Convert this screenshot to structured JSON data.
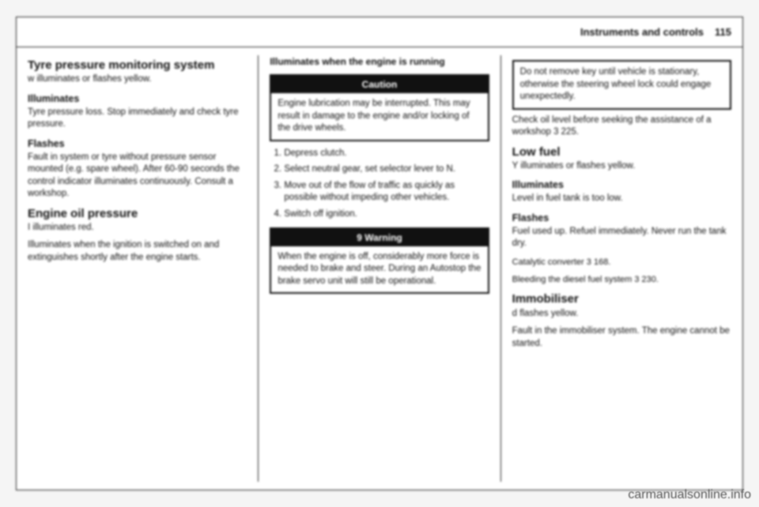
{
  "header": {
    "title": "Instruments and controls",
    "page": "115"
  },
  "col1": {
    "tpms": {
      "heading": "Tyre pressure monitoring system",
      "indicator": "w illuminates or flashes yellow.",
      "illum_h": "Illuminates",
      "illum_t": "Tyre pressure loss. Stop immediately and check tyre pressure.",
      "flash_h": "Flashes",
      "flash_t": "Fault in system or tyre without pressure sensor mounted (e.g. spare wheel). After 60-90 seconds the control indicator illuminates continuously. Consult a workshop."
    },
    "oil": {
      "heading": "Engine oil pressure",
      "indicator": "I illuminates red.",
      "para": "Illuminates when the ignition is switched on and extinguishes shortly after the engine starts."
    }
  },
  "col2": {
    "running_h": "Illuminates when the engine is running",
    "caution": {
      "label": "Caution",
      "text": "Engine lubrication may be interrupted. This may result in damage to the engine and/or locking of the drive wheels."
    },
    "steps": [
      "Depress clutch.",
      "Select neutral gear, set selector lever to N.",
      "Move out of the flow of traffic as quickly as possible without impeding other vehicles.",
      "Switch off ignition."
    ],
    "warning": {
      "label": "9 Warning",
      "text": "When the engine is off, considerably more force is needed to brake and steer. During an Autostop the brake servo unit will still be operational."
    }
  },
  "col3": {
    "keybox": "Do not remove key until vehicle is stationary, otherwise the steering wheel lock could engage unexpectedly.",
    "oilcheck": "Check oil level before seeking the assistance of a workshop 3 225.",
    "lowfuel": {
      "heading": "Low fuel",
      "indicator": "Y illuminates or flashes yellow.",
      "illum_h": "Illuminates",
      "illum_t": "Level in fuel tank is too low.",
      "flash_h": "Flashes",
      "flash_t": "Fuel used up. Refuel immediately. Never run the tank dry.",
      "cat": "Catalytic converter 3 168.",
      "bleed": "Bleeding the diesel fuel system 3 230."
    },
    "immob": {
      "heading": "Immobiliser",
      "indicator": "d flashes yellow.",
      "text": "Fault in the immobiliser system. The engine cannot be started."
    }
  },
  "watermark": "carmanualsonline.info"
}
